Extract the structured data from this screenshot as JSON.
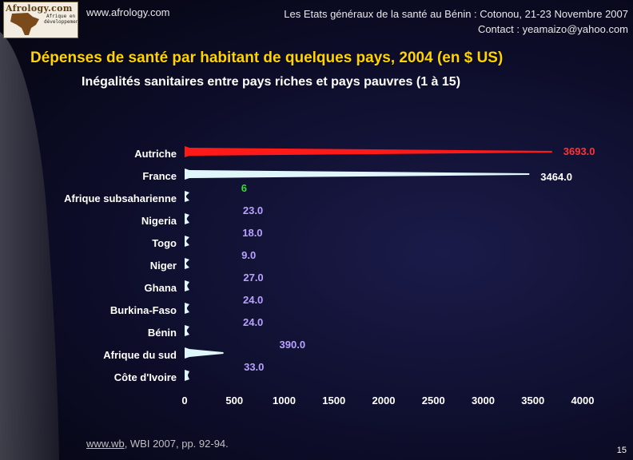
{
  "header": {
    "logo_text": "Afrology.com",
    "logo_sub": "Afrique en développement",
    "site": "www.afrology.com",
    "conference_line1": "Les Etats généraux de la santé au Bénin : Cotonou, 21-23 Novembre 2007",
    "conference_line2": "Contact : yeamaizo@yahoo.com"
  },
  "slide": {
    "title": "Dépenses de santé par habitant de quelques pays, 2004 (en $ US)",
    "subtitle": "Inégalités sanitaires entre pays riches et pays pauvres (1 à 15)",
    "source_link": "www.wb",
    "source_rest": ", WBI 2007, pp. 92-94.",
    "page_number": "15"
  },
  "colors": {
    "title": "#ffd400",
    "bar_red": "#ff1a1a",
    "bar_cyan": "#dff6fb",
    "label_red": "#ff3333",
    "label_green": "#33dd33",
    "label_violet": "#b9a2ff",
    "label_white": "#ffffff"
  },
  "chart_data": {
    "type": "bar",
    "orientation": "horizontal",
    "title": "",
    "xlabel": "",
    "ylabel": "",
    "xlim": [
      0,
      4000
    ],
    "xticks": [
      0,
      500,
      1000,
      1500,
      2000,
      2500,
      3000,
      3500,
      4000
    ],
    "grid": false,
    "legend": "none",
    "categories": [
      "Autriche",
      "France",
      "Afrique subsaharienne",
      "Nigeria",
      "Togo",
      "Niger",
      "Ghana",
      "Burkina-Faso",
      "Bénin",
      "Afrique du sud",
      "Côte d'Ivoire"
    ],
    "values": [
      3693,
      3464,
      6,
      23,
      18,
      9,
      27,
      24,
      24,
      390,
      33
    ],
    "value_labels": [
      "3693.0",
      "3464.0",
      "6",
      "23.0",
      "18.0",
      "9.0",
      "27.0",
      "24.0",
      "24.0",
      "390.0",
      "33.0"
    ],
    "bar_colors": [
      "bar_red",
      "bar_cyan",
      "bar_cyan",
      "bar_cyan",
      "bar_cyan",
      "bar_cyan",
      "bar_cyan",
      "bar_cyan",
      "bar_cyan",
      "bar_cyan",
      "bar_cyan"
    ],
    "label_colors": [
      "label_red",
      "label_white",
      "label_green",
      "label_violet",
      "label_violet",
      "label_violet",
      "label_violet",
      "label_violet",
      "label_violet",
      "label_violet",
      "label_violet"
    ]
  }
}
